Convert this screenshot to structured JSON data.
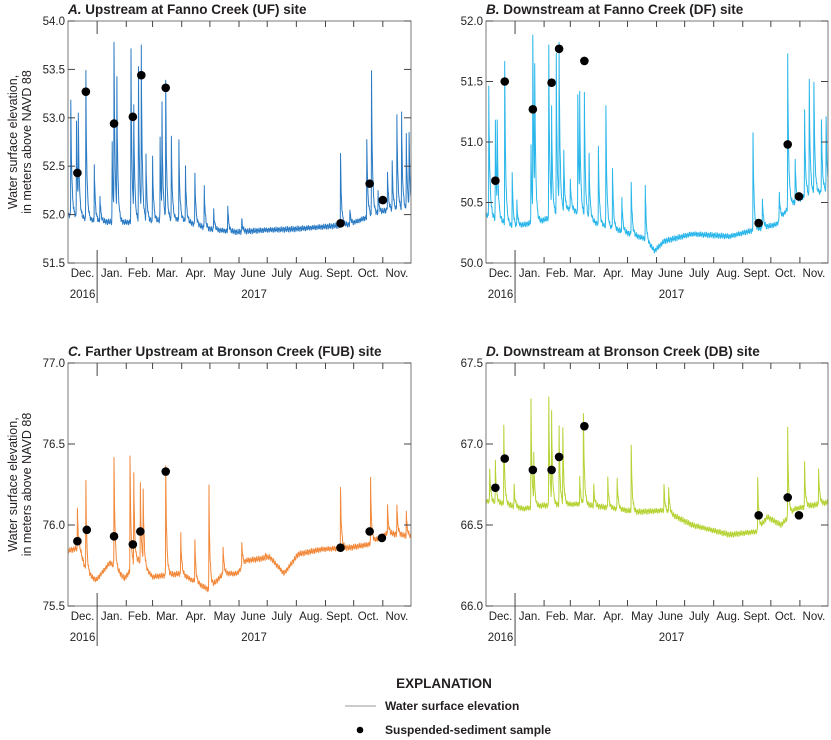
{
  "legend": {
    "heading": "EXPLANATION",
    "line_label": "Water surface elevation",
    "dot_label": "Suspended-sediment sample",
    "line_color": "#9a9a9a"
  },
  "ylabel_line1": "Water surface elevation,",
  "ylabel_line2": "in meters above NAVD 88",
  "months": [
    "Dec.",
    "Jan.",
    "Feb.",
    "Mar.",
    "Apr.",
    "May",
    "June",
    "July",
    "Aug.",
    "Sept.",
    "Oct.",
    "Nov."
  ],
  "month_days": [
    31,
    31,
    28,
    31,
    30,
    31,
    30,
    31,
    31,
    30,
    31,
    30
  ],
  "years": [
    "2016",
    "2017"
  ],
  "chart_data": [
    {
      "type": "line",
      "letter": "A.",
      "title": " Upstream at Fanno Creek (UF) site",
      "color": "#2b7bc4",
      "ylim": [
        51.5,
        54.0
      ],
      "yticks": [
        "51.5",
        "52.0",
        "52.5",
        "53.0",
        "53.5",
        "54.0"
      ],
      "show_ylabel": true,
      "baseline": [
        [
          0,
          52.0
        ],
        [
          30,
          51.93
        ],
        [
          60,
          51.92
        ],
        [
          120,
          51.95
        ],
        [
          150,
          51.85
        ],
        [
          180,
          51.82
        ],
        [
          210,
          51.84
        ],
        [
          240,
          51.85
        ],
        [
          280,
          51.88
        ],
        [
          300,
          51.9
        ],
        [
          320,
          51.98
        ],
        [
          340,
          52.05
        ],
        [
          365,
          52.05
        ]
      ],
      "spikes": [
        [
          3,
          53.18
        ],
        [
          9,
          52.95
        ],
        [
          11,
          52.9
        ],
        [
          19,
          53.47
        ],
        [
          28,
          52.53
        ],
        [
          34,
          52.2
        ],
        [
          47,
          52.75
        ],
        [
          49,
          53.64
        ],
        [
          52,
          53.3
        ],
        [
          67,
          53.72
        ],
        [
          70,
          53.0
        ],
        [
          75,
          53.5
        ],
        [
          78,
          53.65
        ],
        [
          83,
          52.6
        ],
        [
          90,
          52.6
        ],
        [
          98,
          52.8
        ],
        [
          100,
          53.0
        ],
        [
          104,
          53.35
        ],
        [
          110,
          52.8
        ],
        [
          118,
          52.75
        ],
        [
          125,
          52.5
        ],
        [
          135,
          52.45
        ],
        [
          145,
          52.3
        ],
        [
          155,
          52.05
        ],
        [
          170,
          52.1
        ],
        [
          185,
          51.95
        ],
        [
          290,
          52.63
        ],
        [
          300,
          52.05
        ],
        [
          318,
          52.78
        ],
        [
          323,
          53.45
        ],
        [
          330,
          52.25
        ],
        [
          340,
          52.45
        ],
        [
          345,
          52.55
        ],
        [
          350,
          53.05
        ],
        [
          355,
          53.03
        ],
        [
          360,
          52.82
        ],
        [
          363,
          52.8
        ]
      ],
      "samples": [
        [
          10,
          52.43
        ],
        [
          19,
          53.27
        ],
        [
          49,
          52.94
        ],
        [
          69,
          53.01
        ],
        [
          78,
          53.44
        ],
        [
          104,
          53.31
        ],
        [
          290,
          51.91
        ],
        [
          321,
          52.32
        ],
        [
          335,
          52.15
        ]
      ]
    },
    {
      "type": "line",
      "letter": "B.",
      "title": " Downstream at Fanno Creek (DF) site",
      "color": "#29b6ea",
      "ylim": [
        50.0,
        52.0
      ],
      "yticks": [
        "50.0",
        "50.5",
        "51.0",
        "51.5",
        "52.0"
      ],
      "show_ylabel": false,
      "baseline": [
        [
          0,
          50.4
        ],
        [
          30,
          50.3
        ],
        [
          60,
          50.35
        ],
        [
          90,
          50.45
        ],
        [
          120,
          50.32
        ],
        [
          150,
          50.25
        ],
        [
          170,
          50.2
        ],
        [
          180,
          50.1
        ],
        [
          190,
          50.18
        ],
        [
          220,
          50.24
        ],
        [
          260,
          50.22
        ],
        [
          290,
          50.28
        ],
        [
          310,
          50.32
        ],
        [
          325,
          50.48
        ],
        [
          340,
          50.55
        ],
        [
          365,
          50.6
        ]
      ],
      "spikes": [
        [
          3,
          51.47
        ],
        [
          10,
          51.18
        ],
        [
          12,
          51.05
        ],
        [
          20,
          51.65
        ],
        [
          28,
          50.75
        ],
        [
          33,
          50.5
        ],
        [
          48,
          51.0
        ],
        [
          50,
          51.78
        ],
        [
          52,
          51.4
        ],
        [
          67,
          51.8
        ],
        [
          70,
          51.2
        ],
        [
          75,
          51.7
        ],
        [
          78,
          51.75
        ],
        [
          83,
          50.9
        ],
        [
          90,
          50.7
        ],
        [
          98,
          51.4
        ],
        [
          100,
          51.25
        ],
        [
          105,
          51.4
        ],
        [
          110,
          50.9
        ],
        [
          120,
          50.95
        ],
        [
          128,
          51.3
        ],
        [
          135,
          50.8
        ],
        [
          145,
          50.55
        ],
        [
          155,
          50.67
        ],
        [
          170,
          50.64
        ],
        [
          285,
          51.08
        ],
        [
          295,
          50.55
        ],
        [
          313,
          50.6
        ],
        [
          322,
          51.72
        ],
        [
          330,
          50.85
        ],
        [
          340,
          51.27
        ],
        [
          345,
          51.51
        ],
        [
          350,
          51.5
        ],
        [
          358,
          51.2
        ],
        [
          363,
          51.2
        ]
      ],
      "samples": [
        [
          10,
          50.68
        ],
        [
          20,
          51.5
        ],
        [
          50,
          51.27
        ],
        [
          70,
          51.49
        ],
        [
          78,
          51.77
        ],
        [
          105,
          51.67
        ],
        [
          291,
          50.33
        ],
        [
          322,
          50.98
        ],
        [
          334,
          50.55
        ]
      ]
    },
    {
      "type": "line",
      "letter": "C.",
      "title": " Farther Upstream at Bronson Creek (FUB) site",
      "color": "#f2883a",
      "ylim": [
        75.5,
        77.0
      ],
      "yticks": [
        "75.5",
        "76.0",
        "76.5",
        "77.0"
      ],
      "show_ylabel": true,
      "baseline": [
        [
          0,
          75.84
        ],
        [
          12,
          75.86
        ],
        [
          20,
          75.7
        ],
        [
          30,
          75.66
        ],
        [
          45,
          75.77
        ],
        [
          60,
          75.67
        ],
        [
          75,
          75.78
        ],
        [
          90,
          75.68
        ],
        [
          120,
          75.7
        ],
        [
          150,
          75.6
        ],
        [
          165,
          75.7
        ],
        [
          180,
          75.7
        ],
        [
          190,
          75.78
        ],
        [
          215,
          75.8
        ],
        [
          230,
          75.7
        ],
        [
          245,
          75.82
        ],
        [
          270,
          75.85
        ],
        [
          300,
          75.86
        ],
        [
          320,
          75.88
        ],
        [
          340,
          75.95
        ],
        [
          365,
          75.93
        ]
      ],
      "spikes": [
        [
          10,
          76.1
        ],
        [
          19,
          76.28
        ],
        [
          49,
          76.42
        ],
        [
          66,
          76.44
        ],
        [
          70,
          76.3
        ],
        [
          77,
          76.25
        ],
        [
          80,
          76.2
        ],
        [
          104,
          76.38
        ],
        [
          120,
          75.95
        ],
        [
          135,
          75.92
        ],
        [
          150,
          76.23
        ],
        [
          165,
          75.88
        ],
        [
          185,
          75.9
        ],
        [
          210,
          75.82
        ],
        [
          290,
          76.23
        ],
        [
          322,
          76.28
        ],
        [
          340,
          76.12
        ],
        [
          350,
          76.13
        ],
        [
          360,
          76.08
        ]
      ],
      "samples": [
        [
          10,
          75.9
        ],
        [
          20,
          75.97
        ],
        [
          49,
          75.93
        ],
        [
          69,
          75.88
        ],
        [
          77,
          75.96
        ],
        [
          104,
          76.33
        ],
        [
          290,
          75.86
        ],
        [
          321,
          75.96
        ],
        [
          334,
          75.92
        ]
      ]
    },
    {
      "type": "line",
      "letter": "D.",
      "title": " Downstream at Bronson Creek (DB) site",
      "color": "#b5d334",
      "ylim": [
        66.0,
        67.5
      ],
      "yticks": [
        "66.0",
        "66.5",
        "67.0",
        "67.5"
      ],
      "show_ylabel": false,
      "baseline": [
        [
          0,
          66.65
        ],
        [
          20,
          66.63
        ],
        [
          40,
          66.6
        ],
        [
          60,
          66.62
        ],
        [
          100,
          66.63
        ],
        [
          140,
          66.6
        ],
        [
          160,
          66.58
        ],
        [
          190,
          66.59
        ],
        [
          220,
          66.5
        ],
        [
          240,
          66.47
        ],
        [
          260,
          66.44
        ],
        [
          290,
          66.46
        ],
        [
          300,
          66.55
        ],
        [
          315,
          66.5
        ],
        [
          330,
          66.6
        ],
        [
          365,
          66.64
        ]
      ],
      "spikes": [
        [
          4,
          66.85
        ],
        [
          10,
          66.9
        ],
        [
          19,
          67.12
        ],
        [
          30,
          66.75
        ],
        [
          48,
          67.28
        ],
        [
          51,
          66.9
        ],
        [
          67,
          67.3
        ],
        [
          70,
          67.15
        ],
        [
          78,
          67.12
        ],
        [
          82,
          67.08
        ],
        [
          100,
          66.8
        ],
        [
          104,
          67.2
        ],
        [
          115,
          66.75
        ],
        [
          130,
          66.8
        ],
        [
          140,
          66.8
        ],
        [
          155,
          66.99
        ],
        [
          190,
          66.75
        ],
        [
          195,
          66.74
        ],
        [
          290,
          66.8
        ],
        [
          322,
          67.09
        ],
        [
          340,
          66.88
        ],
        [
          355,
          66.85
        ]
      ],
      "samples": [
        [
          10,
          66.73
        ],
        [
          20,
          66.91
        ],
        [
          50,
          66.84
        ],
        [
          70,
          66.84
        ],
        [
          78,
          66.92
        ],
        [
          105,
          67.11
        ],
        [
          291,
          66.56
        ],
        [
          322,
          66.67
        ],
        [
          334,
          66.56
        ]
      ]
    }
  ]
}
